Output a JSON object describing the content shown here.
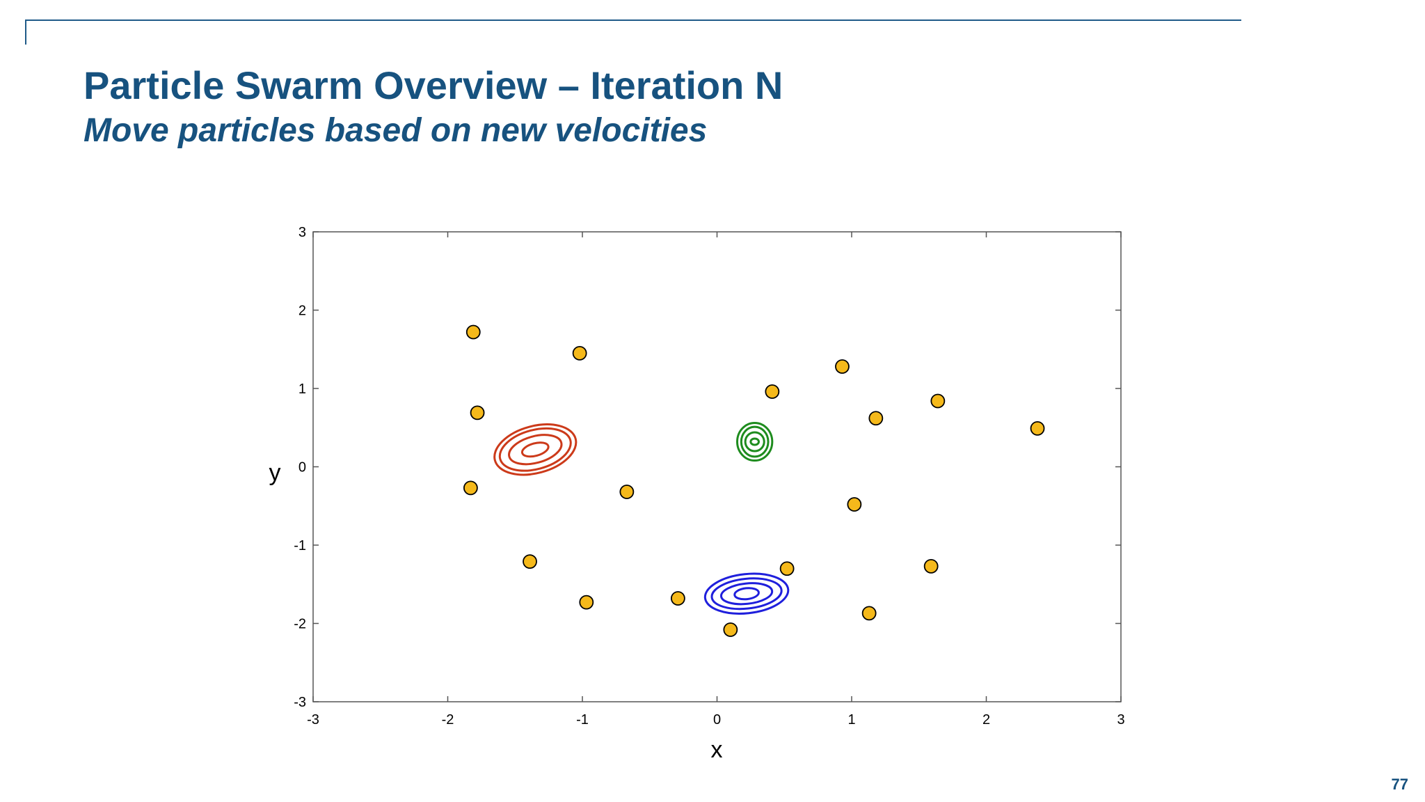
{
  "slide": {
    "title": "Particle Swarm Overview – Iteration N",
    "subtitle": "Move particles based on new velocities",
    "page_number": "77"
  },
  "chart_data": {
    "type": "scatter",
    "xlabel": "x",
    "ylabel": "y",
    "xlim": [
      -3,
      3
    ],
    "ylim": [
      -3,
      3
    ],
    "xticks": [
      -3,
      -2,
      -1,
      0,
      1,
      2,
      3
    ],
    "yticks": [
      -3,
      -2,
      -1,
      0,
      1,
      2,
      3
    ],
    "grid": false,
    "legend": "none",
    "marker_color": "#f5b91b",
    "marker_edge_color": "#000000",
    "points": [
      {
        "x": -1.81,
        "y": 1.72
      },
      {
        "x": -1.02,
        "y": 1.45
      },
      {
        "x": -1.78,
        "y": 0.69
      },
      {
        "x": -1.83,
        "y": -0.27
      },
      {
        "x": -0.67,
        "y": -0.32
      },
      {
        "x": -1.39,
        "y": -1.21
      },
      {
        "x": -0.97,
        "y": -1.73
      },
      {
        "x": -0.29,
        "y": -1.68
      },
      {
        "x": 0.1,
        "y": -2.08
      },
      {
        "x": 0.41,
        "y": 0.96
      },
      {
        "x": 0.93,
        "y": 1.28
      },
      {
        "x": 1.18,
        "y": 0.62
      },
      {
        "x": 1.64,
        "y": 0.84
      },
      {
        "x": 2.38,
        "y": 0.49
      },
      {
        "x": 1.02,
        "y": -0.48
      },
      {
        "x": 0.52,
        "y": -1.3
      },
      {
        "x": 1.59,
        "y": -1.27
      },
      {
        "x": 1.13,
        "y": -1.87
      }
    ],
    "contours": [
      {
        "color": "#cc3a1a",
        "center": [
          -1.35,
          0.22
        ],
        "angle": 15,
        "radii": [
          [
            0.1,
            0.08
          ],
          [
            0.2,
            0.17
          ],
          [
            0.27,
            0.25
          ],
          [
            0.31,
            0.3
          ]
        ]
      },
      {
        "color": "#1e8c1e",
        "center": [
          0.28,
          0.32
        ],
        "angle": 0,
        "radii": [
          [
            0.03,
            0.04
          ],
          [
            0.07,
            0.12
          ],
          [
            0.1,
            0.19
          ],
          [
            0.13,
            0.24
          ]
        ]
      },
      {
        "color": "#1f1fdc",
        "center": [
          0.22,
          -1.62
        ],
        "angle": 6,
        "radii": [
          [
            0.09,
            0.07
          ],
          [
            0.19,
            0.13
          ],
          [
            0.26,
            0.19
          ],
          [
            0.31,
            0.25
          ]
        ]
      }
    ]
  }
}
